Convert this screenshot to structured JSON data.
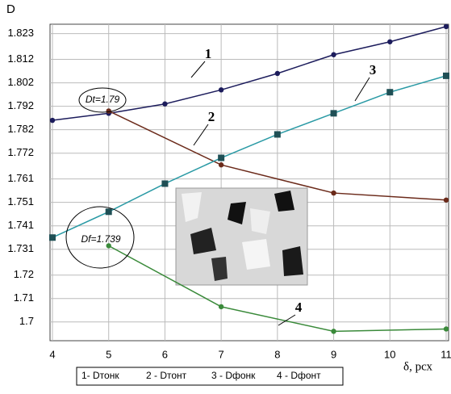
{
  "chart_data": {
    "type": "line",
    "y_label": "D",
    "x_label": "δ, рсх",
    "xlim": [
      4,
      11
    ],
    "xticks": [
      4,
      5,
      6,
      7,
      8,
      9,
      10,
      11
    ],
    "ylim": [
      1.692,
      1.827
    ],
    "yticks": [
      1.7,
      1.71,
      1.72,
      1.731,
      1.741,
      1.751,
      1.761,
      1.772,
      1.782,
      1.792,
      1.802,
      1.812,
      1.823
    ],
    "grid": true,
    "series": [
      {
        "name": "1- Dтонк",
        "label": "1",
        "color": "#1c1c5c",
        "marker": "circle",
        "x": [
          4,
          5,
          6,
          7,
          8,
          9,
          10,
          11
        ],
        "values": [
          1.786,
          1.789,
          1.793,
          1.799,
          1.806,
          1.814,
          1.8195,
          1.826
        ]
      },
      {
        "name": "2 - Dтонт",
        "label": "2",
        "color": "#6b2a1a",
        "marker": "circle",
        "x": [
          5,
          7,
          9,
          11
        ],
        "values": [
          1.79,
          1.767,
          1.755,
          1.752
        ]
      },
      {
        "name": "3 - Dфонк",
        "label": "3",
        "color": "#2a9aa5",
        "marker": "square",
        "x": [
          4,
          5,
          6,
          7,
          8,
          9,
          10,
          11
        ],
        "values": [
          1.736,
          1.747,
          1.759,
          1.77,
          1.78,
          1.789,
          1.798,
          1.805
        ]
      },
      {
        "name": "4 - Dфонт",
        "label": "4",
        "color": "#3a8a3a",
        "marker": "circle",
        "x": [
          5,
          7,
          9,
          11
        ],
        "values": [
          1.7325,
          1.7065,
          1.696,
          1.697
        ]
      }
    ],
    "annotations": [
      "Dt=1.79",
      "Df=1.739"
    ]
  }
}
